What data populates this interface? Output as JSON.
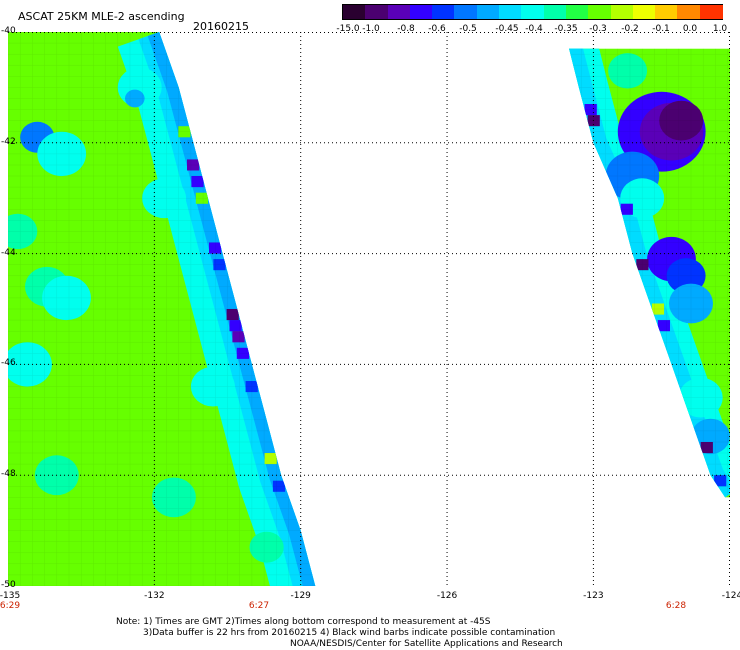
{
  "header": {
    "title": "ASCAT 25KM MLE-2 ascending",
    "date": "20160215"
  },
  "colorbar": {
    "colors": [
      "#2a0030",
      "#4b0070",
      "#5a00b8",
      "#3300ff",
      "#0033ff",
      "#0077ff",
      "#00aaff",
      "#00dcff",
      "#00ffee",
      "#00ffaa",
      "#22ff44",
      "#66ff00",
      "#b4ff00",
      "#eeff00",
      "#ffcc00",
      "#ff8800",
      "#ff3300"
    ],
    "ticks": [
      "-15.0",
      "-1.0",
      "-0.8",
      "-0.6",
      "-0.5",
      "-0.45",
      "-0.4",
      "-0.35",
      "-0.3",
      "-0.2",
      "-0.1",
      "0.0",
      "1.0"
    ]
  },
  "map": {
    "lat_labels": [
      "-40",
      "-42",
      "-44",
      "-46",
      "-48",
      "-50"
    ],
    "lon_labels": [
      "-135",
      "-132",
      "-129",
      "-126",
      "-123",
      "-124"
    ],
    "time_labels": [
      "6:29",
      "6:27",
      "6:28"
    ],
    "lat_range": [
      -50,
      -40
    ],
    "lon_range": [
      -135,
      -120.2
    ],
    "swaths": [
      {
        "name": "swath-west",
        "edge": [
          [
            -40.0,
            -131.9
          ],
          [
            -41.0,
            -131.5
          ],
          [
            -42.0,
            -131.2
          ],
          [
            -43.0,
            -130.9
          ],
          [
            -44.0,
            -130.6
          ],
          [
            -45.0,
            -130.3
          ],
          [
            -46.0,
            -130.0
          ],
          [
            -47.0,
            -129.7
          ],
          [
            -48.0,
            -129.4
          ],
          [
            -49.0,
            -129.0
          ],
          [
            -50.0,
            -128.7
          ]
        ],
        "base_color": "#66ff00",
        "patches": [
          {
            "lat": -41.9,
            "lon": -134.4,
            "r": 0.35,
            "color": "#0077ff"
          },
          {
            "lat": -42.2,
            "lon": -133.9,
            "r": 0.5,
            "color": "#00ffee"
          },
          {
            "lat": -41.0,
            "lon": -132.3,
            "r": 0.45,
            "color": "#00ffee"
          },
          {
            "lat": -41.2,
            "lon": -132.4,
            "r": 0.2,
            "color": "#00aaff"
          },
          {
            "lat": -43.6,
            "lon": -134.8,
            "r": 0.4,
            "color": "#00ffaa"
          },
          {
            "lat": -44.6,
            "lon": -134.2,
            "r": 0.45,
            "color": "#00ffaa"
          },
          {
            "lat": -44.8,
            "lon": -133.8,
            "r": 0.5,
            "color": "#00ffee"
          },
          {
            "lat": -46.0,
            "lon": -134.6,
            "r": 0.5,
            "color": "#00ffee"
          },
          {
            "lat": -48.0,
            "lon": -134.0,
            "r": 0.45,
            "color": "#00ffaa"
          },
          {
            "lat": -48.4,
            "lon": -131.6,
            "r": 0.45,
            "color": "#00ffaa"
          },
          {
            "lat": -46.4,
            "lon": -130.8,
            "r": 0.45,
            "color": "#00ffee"
          },
          {
            "lat": -43.0,
            "lon": -131.8,
            "r": 0.45,
            "color": "#00ffee"
          },
          {
            "lat": -49.3,
            "lon": -129.7,
            "r": 0.35,
            "color": "#00ffaa"
          }
        ],
        "edge_bands": [
          {
            "depth": 0.9,
            "color": "#00ffee"
          },
          {
            "depth": 0.45,
            "color": "#00dcff"
          },
          {
            "depth": 0.25,
            "color": "#00aaff"
          }
        ],
        "edge_spots": [
          {
            "lat": -42.4,
            "color": "#5a00b8"
          },
          {
            "lat": -42.7,
            "color": "#3300ff"
          },
          {
            "lat": -43.9,
            "color": "#3300ff"
          },
          {
            "lat": -44.2,
            "color": "#0033ff"
          },
          {
            "lat": -45.1,
            "color": "#4b0070"
          },
          {
            "lat": -45.3,
            "color": "#3300ff"
          },
          {
            "lat": -45.5,
            "color": "#5a00b8"
          },
          {
            "lat": -45.8,
            "color": "#3300ff"
          },
          {
            "lat": -46.4,
            "color": "#0033ff"
          },
          {
            "lat": -47.7,
            "color": "#b4ff00"
          },
          {
            "lat": -48.2,
            "color": "#0033ff"
          },
          {
            "lat": -41.8,
            "color": "#66ff00"
          },
          {
            "lat": -43.0,
            "color": "#66ff00"
          }
        ]
      },
      {
        "name": "swath-east",
        "edge": [
          [
            -40.3,
            -123.5
          ],
          [
            -41.0,
            -123.3
          ],
          [
            -42.0,
            -123.0
          ],
          [
            -43.0,
            -122.5
          ],
          [
            -44.0,
            -122.2
          ],
          [
            -45.0,
            -121.8
          ],
          [
            -46.0,
            -121.4
          ],
          [
            -47.0,
            -121.0
          ],
          [
            -48.0,
            -120.6
          ],
          [
            -48.4,
            -120.3
          ]
        ],
        "base_color": "#66ff00",
        "patches": [
          {
            "lat": -41.8,
            "lon": -121.6,
            "r": 0.9,
            "color": "#3300ff"
          },
          {
            "lat": -41.8,
            "lon": -121.4,
            "r": 0.65,
            "color": "#5a00b8"
          },
          {
            "lat": -41.6,
            "lon": -121.2,
            "r": 0.45,
            "color": "#4b0070"
          },
          {
            "lat": -42.6,
            "lon": -122.2,
            "r": 0.55,
            "color": "#0077ff"
          },
          {
            "lat": -43.0,
            "lon": -122.0,
            "r": 0.45,
            "color": "#00ffee"
          },
          {
            "lat": -44.1,
            "lon": -121.4,
            "r": 0.5,
            "color": "#3300ff"
          },
          {
            "lat": -44.4,
            "lon": -121.1,
            "r": 0.4,
            "color": "#0033ff"
          },
          {
            "lat": -44.9,
            "lon": -121.0,
            "r": 0.45,
            "color": "#00aaff"
          },
          {
            "lat": -46.6,
            "lon": -120.8,
            "r": 0.45,
            "color": "#00ffee"
          },
          {
            "lat": -47.3,
            "lon": -120.6,
            "r": 0.4,
            "color": "#00aaff"
          },
          {
            "lat": -40.7,
            "lon": -122.3,
            "r": 0.4,
            "color": "#00ffaa"
          }
        ],
        "edge_bands": [
          {
            "depth": 0.6,
            "color": "#00ffee"
          },
          {
            "depth": 0.28,
            "color": "#00dcff"
          }
        ],
        "edge_spots": [
          {
            "lat": -41.4,
            "color": "#3300ff"
          },
          {
            "lat": -41.6,
            "color": "#4b0070"
          },
          {
            "lat": -43.2,
            "color": "#3300ff"
          },
          {
            "lat": -44.2,
            "color": "#4b0070"
          },
          {
            "lat": -45.3,
            "color": "#3300ff"
          },
          {
            "lat": -45.0,
            "color": "#b4ff00"
          },
          {
            "lat": -47.5,
            "color": "#4b0070"
          },
          {
            "lat": -48.1,
            "color": "#0033ff"
          }
        ]
      }
    ]
  },
  "footer": {
    "note_line1": "Note: 1) Times are GMT 2)Times along bottom correspond to measurement at -45S",
    "note_line2": "3)Data buffer is 22 hrs from 20160215 4) Black wind barbs indicate possible contamination",
    "credit": "NOAA/NESDIS/Center for Satellite Applications and Research"
  }
}
